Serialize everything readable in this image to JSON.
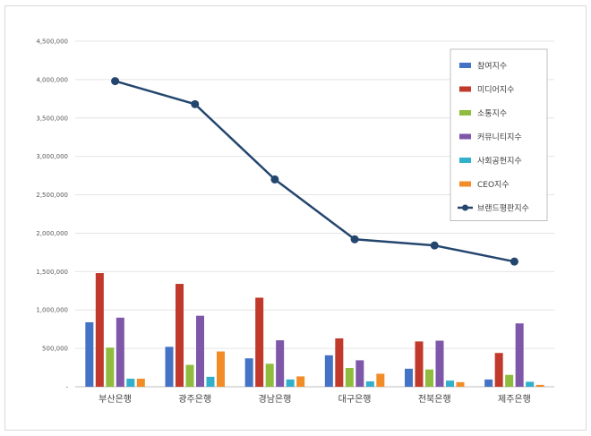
{
  "chart_data": {
    "type": "bar",
    "categories": [
      "부산은행",
      "광주은행",
      "경남은행",
      "대구은행",
      "전북은행",
      "제주은행"
    ],
    "ylim": [
      0,
      4500000
    ],
    "yticks": [
      "-",
      "500,000",
      "1,000,000",
      "1,500,000",
      "2,000,000",
      "2,500,000",
      "3,000,000",
      "3,500,000",
      "4,000,000",
      "4,500,000"
    ],
    "grid": true,
    "legend_position": "top-right",
    "series": [
      {
        "name": "참여지수",
        "kind": "bar",
        "color": "#4472C4",
        "values": [
          840000,
          520000,
          370000,
          410000,
          235000,
          95000
        ]
      },
      {
        "name": "미디어지수",
        "kind": "bar",
        "color": "#C0392B",
        "values": [
          1480000,
          1340000,
          1160000,
          630000,
          590000,
          440000
        ]
      },
      {
        "name": "소통지수",
        "kind": "bar",
        "color": "#8FBC3F",
        "values": [
          510000,
          285000,
          300000,
          245000,
          225000,
          155000
        ]
      },
      {
        "name": "커뮤니티지수",
        "kind": "bar",
        "color": "#7E57A8",
        "values": [
          900000,
          925000,
          605000,
          345000,
          600000,
          825000
        ]
      },
      {
        "name": "사회공헌지수",
        "kind": "bar",
        "color": "#31AFCB",
        "values": [
          105000,
          130000,
          95000,
          70000,
          80000,
          65000
        ]
      },
      {
        "name": "CEO지수",
        "kind": "bar",
        "color": "#F28C28",
        "values": [
          105000,
          460000,
          135000,
          170000,
          60000,
          25000
        ]
      },
      {
        "name": "브랜드평판지수",
        "kind": "line",
        "color": "#24466E",
        "values": [
          3980000,
          3680000,
          2700000,
          1920000,
          1840000,
          1630000
        ]
      }
    ]
  }
}
